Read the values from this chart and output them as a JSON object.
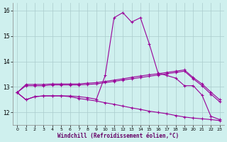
{
  "xlabel": "Windchill (Refroidissement éolien,°C)",
  "bg_color": "#cff0ee",
  "line_color": "#990099",
  "grid_color": "#aacccc",
  "xlim": [
    -0.5,
    23.5
  ],
  "ylim": [
    11.5,
    16.3
  ],
  "yticks": [
    12,
    13,
    14,
    15,
    16
  ],
  "xticks": [
    0,
    1,
    2,
    3,
    4,
    5,
    6,
    7,
    8,
    9,
    10,
    11,
    12,
    13,
    14,
    15,
    16,
    17,
    18,
    19,
    20,
    21,
    22,
    23
  ],
  "series1_x": [
    0,
    1,
    2,
    3,
    4,
    5,
    6,
    7,
    8,
    9,
    10,
    11,
    12,
    13,
    14,
    15,
    16,
    17,
    18,
    19,
    20,
    21,
    22,
    23
  ],
  "series1_y": [
    12.78,
    12.5,
    12.62,
    12.65,
    12.65,
    12.65,
    12.65,
    12.62,
    12.58,
    12.52,
    13.45,
    15.72,
    15.92,
    15.55,
    15.72,
    14.7,
    13.55,
    13.45,
    13.35,
    13.05,
    13.05,
    12.68,
    11.85,
    11.72
  ],
  "series2_x": [
    0,
    1,
    2,
    3,
    4,
    5,
    6,
    7,
    8,
    9,
    10,
    11,
    12,
    13,
    14,
    15,
    16,
    17,
    18,
    19,
    20,
    21,
    22,
    23
  ],
  "series2_y": [
    12.78,
    13.1,
    13.1,
    13.1,
    13.12,
    13.12,
    13.12,
    13.12,
    13.15,
    13.17,
    13.22,
    13.27,
    13.32,
    13.38,
    13.43,
    13.48,
    13.52,
    13.57,
    13.62,
    13.67,
    13.37,
    13.12,
    12.8,
    12.5
  ],
  "series3_x": [
    0,
    1,
    2,
    3,
    4,
    5,
    6,
    7,
    8,
    9,
    10,
    11,
    12,
    13,
    14,
    15,
    16,
    17,
    18,
    19,
    20,
    21,
    22,
    23
  ],
  "series3_y": [
    12.78,
    13.05,
    13.05,
    13.05,
    13.08,
    13.08,
    13.08,
    13.08,
    13.1,
    13.12,
    13.17,
    13.22,
    13.27,
    13.32,
    13.37,
    13.42,
    13.47,
    13.52,
    13.57,
    13.62,
    13.32,
    13.05,
    12.72,
    12.42
  ],
  "series4_x": [
    0,
    1,
    2,
    3,
    4,
    5,
    6,
    7,
    8,
    9,
    10,
    11,
    12,
    13,
    14,
    15,
    16,
    17,
    18,
    19,
    20,
    21,
    22,
    23
  ],
  "series4_y": [
    12.78,
    12.5,
    12.62,
    12.65,
    12.65,
    12.65,
    12.62,
    12.55,
    12.5,
    12.45,
    12.38,
    12.32,
    12.25,
    12.18,
    12.12,
    12.05,
    12.0,
    11.95,
    11.88,
    11.82,
    11.78,
    11.75,
    11.72,
    11.68
  ]
}
